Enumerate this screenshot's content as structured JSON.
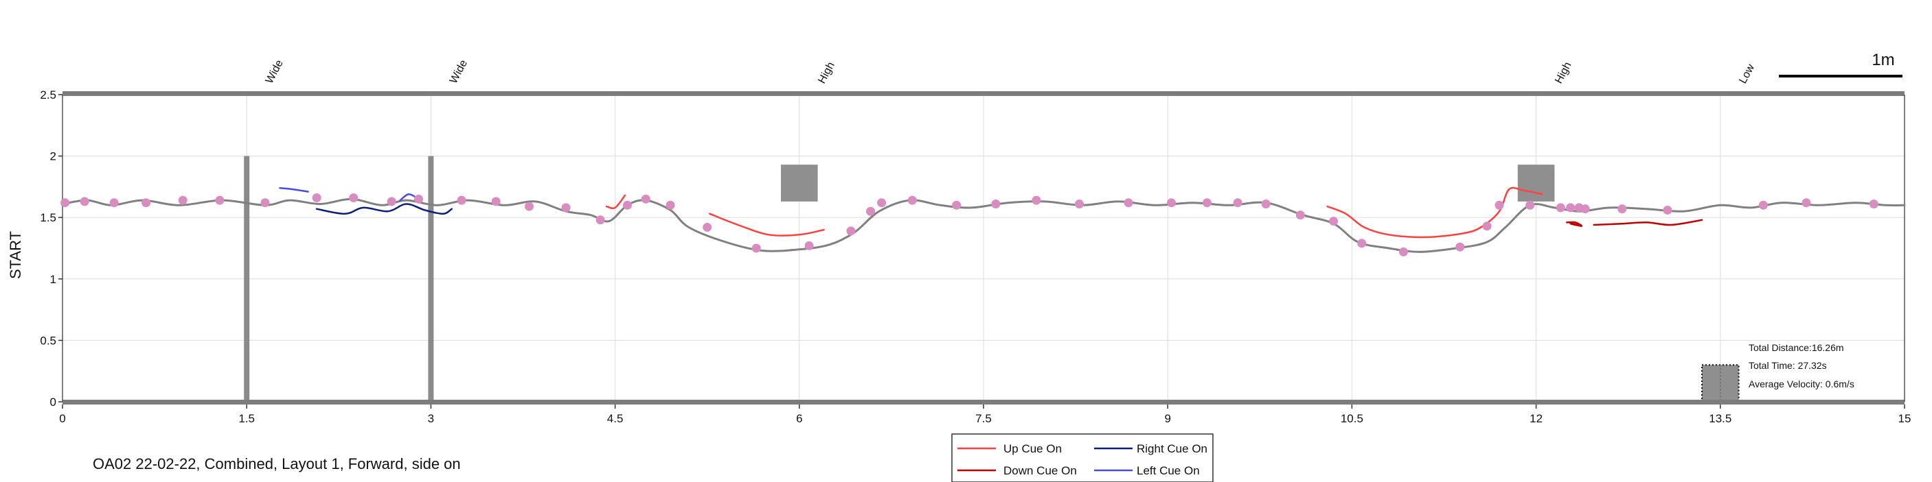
{
  "chart_data": {
    "type": "line",
    "title": "",
    "xlabel": "",
    "ylabel": "START",
    "xlim": [
      0,
      15
    ],
    "ylim": [
      0,
      2.5
    ],
    "grid": true,
    "x_ticks": [
      {
        "value": 0,
        "label": "0"
      },
      {
        "value": 1.5,
        "label": "1.5"
      },
      {
        "value": 3,
        "label": "3"
      },
      {
        "value": 4.5,
        "label": "4.5"
      },
      {
        "value": 6,
        "label": "6"
      },
      {
        "value": 7.5,
        "label": "7.5"
      },
      {
        "value": 9,
        "label": "9"
      },
      {
        "value": 10.5,
        "label": "10.5"
      },
      {
        "value": 12,
        "label": "12"
      },
      {
        "value": 13.5,
        "label": "13.5"
      },
      {
        "value": 15,
        "label": "15"
      }
    ],
    "y_ticks": [
      {
        "value": 0,
        "label": "0"
      },
      {
        "value": 0.5,
        "label": "0.5"
      },
      {
        "value": 1,
        "label": "1"
      },
      {
        "value": 1.5,
        "label": "1.5"
      },
      {
        "value": 2,
        "label": "2"
      },
      {
        "value": 2.5,
        "label": "2.5"
      }
    ],
    "obstacle_labels": [
      {
        "x": 1.5,
        "label": "Wide"
      },
      {
        "x": 3,
        "label": "Wide"
      },
      {
        "x": 6,
        "label": "High"
      },
      {
        "x": 12,
        "label": "High"
      },
      {
        "x": 13.5,
        "label": "Low"
      }
    ],
    "obstacles": [
      {
        "kind": "bar",
        "x": 1.5,
        "y0": 0,
        "y1": 2
      },
      {
        "kind": "bar",
        "x": 3,
        "y0": 0,
        "y1": 2
      },
      {
        "kind": "box",
        "x0": 5.85,
        "x1": 6.15,
        "y0": 1.63,
        "y1": 1.93
      },
      {
        "kind": "box",
        "x0": 11.85,
        "x1": 12.15,
        "y0": 1.63,
        "y1": 1.93
      },
      {
        "kind": "dotted-box",
        "x0": 13.35,
        "x1": 13.65,
        "y0": 0,
        "y1": 0.3
      }
    ],
    "series": [
      {
        "name": "",
        "color": "#808080",
        "x": [
          0,
          0.2,
          0.4,
          0.65,
          0.95,
          1.3,
          1.65,
          1.85,
          2.1,
          2.35,
          2.6,
          2.8,
          3.05,
          3.3,
          3.6,
          3.85,
          4.1,
          4.3,
          4.45,
          4.6,
          4.75,
          4.95,
          5.1,
          5.4,
          5.7,
          6.0,
          6.25,
          6.45,
          6.65,
          6.9,
          7.15,
          7.4,
          7.7,
          8.0,
          8.3,
          8.6,
          8.9,
          9.2,
          9.5,
          9.8,
          10.1,
          10.35,
          10.55,
          10.8,
          11.05,
          11.35,
          11.6,
          11.75,
          11.95,
          12.15,
          12.35,
          12.6,
          12.9,
          13.2,
          13.5,
          13.75,
          14.0,
          14.3,
          14.6,
          14.85,
          15.0
        ],
        "y": [
          1.61,
          1.64,
          1.6,
          1.64,
          1.6,
          1.64,
          1.6,
          1.64,
          1.61,
          1.65,
          1.6,
          1.64,
          1.6,
          1.64,
          1.6,
          1.63,
          1.55,
          1.52,
          1.47,
          1.6,
          1.64,
          1.56,
          1.42,
          1.3,
          1.23,
          1.24,
          1.28,
          1.38,
          1.55,
          1.64,
          1.6,
          1.58,
          1.62,
          1.63,
          1.6,
          1.63,
          1.6,
          1.62,
          1.6,
          1.62,
          1.52,
          1.45,
          1.3,
          1.25,
          1.22,
          1.25,
          1.3,
          1.42,
          1.6,
          1.58,
          1.55,
          1.58,
          1.57,
          1.55,
          1.6,
          1.58,
          1.62,
          1.6,
          1.62,
          1.6,
          1.6
        ]
      },
      {
        "name": "Up Cue On",
        "color": "#ff4040",
        "segments": [
          {
            "x": [
              4.43,
              4.5,
              4.58
            ],
            "y": [
              1.59,
              1.58,
              1.68
            ]
          },
          {
            "x": [
              5.27,
              5.5,
              5.75,
              6.0,
              6.2
            ],
            "y": [
              1.53,
              1.44,
              1.36,
              1.36,
              1.4
            ]
          },
          {
            "x": [
              10.3,
              10.45,
              10.6,
              10.8,
              11.1,
              11.4,
              11.55,
              11.7,
              11.78,
              11.9,
              12.05
            ],
            "y": [
              1.59,
              1.53,
              1.42,
              1.36,
              1.34,
              1.37,
              1.42,
              1.55,
              1.73,
              1.72,
              1.69
            ]
          }
        ]
      },
      {
        "name": "Down Cue On",
        "color": "#c00000",
        "segments": [
          {
            "x": [
              12.25,
              12.32,
              12.37,
              12.28,
              12.35
            ],
            "y": [
              1.46,
              1.46,
              1.43,
              1.45,
              1.44
            ]
          },
          {
            "x": [
              12.47,
              12.7,
              12.9,
              13.1,
              13.35
            ],
            "y": [
              1.44,
              1.45,
              1.46,
              1.44,
              1.48
            ]
          }
        ]
      },
      {
        "name": "Right Cue On",
        "color": "#0a1f7a",
        "segments": [
          {
            "x": [
              2.07,
              2.3,
              2.45,
              2.65,
              2.8,
              2.95,
              3.1,
              3.17
            ],
            "y": [
              1.57,
              1.53,
              1.58,
              1.55,
              1.61,
              1.56,
              1.53,
              1.57
            ]
          }
        ]
      },
      {
        "name": "Left Cue On",
        "color": "#4a4ae0",
        "segments": [
          {
            "x": [
              1.77,
              1.87,
              2.0
            ],
            "y": [
              1.74,
              1.73,
              1.71
            ]
          },
          {
            "x": [
              2.75,
              2.82,
              2.9
            ],
            "y": [
              1.64,
              1.69,
              1.65
            ]
          }
        ]
      }
    ],
    "markers": {
      "color": "#d98cc0",
      "x": [
        0.02,
        0.18,
        0.42,
        0.68,
        0.98,
        1.28,
        1.65,
        2.07,
        2.37,
        2.68,
        2.9,
        3.25,
        3.53,
        3.8,
        4.1,
        4.38,
        4.6,
        4.75,
        4.95,
        5.25,
        5.65,
        6.08,
        6.42,
        6.58,
        6.67,
        6.92,
        7.28,
        7.6,
        7.93,
        8.28,
        8.68,
        9.03,
        9.32,
        9.57,
        9.8,
        10.08,
        10.35,
        10.58,
        10.92,
        11.38,
        11.6,
        11.7,
        11.95,
        12.2,
        12.28,
        12.35,
        12.4,
        12.7,
        13.07,
        13.85,
        14.2,
        14.75
      ],
      "y": [
        1.62,
        1.63,
        1.62,
        1.62,
        1.64,
        1.64,
        1.62,
        1.66,
        1.66,
        1.63,
        1.65,
        1.64,
        1.63,
        1.59,
        1.58,
        1.48,
        1.6,
        1.65,
        1.6,
        1.42,
        1.25,
        1.27,
        1.39,
        1.55,
        1.62,
        1.64,
        1.6,
        1.61,
        1.64,
        1.61,
        1.62,
        1.62,
        1.62,
        1.62,
        1.61,
        1.52,
        1.47,
        1.29,
        1.22,
        1.26,
        1.43,
        1.6,
        1.6,
        1.58,
        1.58,
        1.58,
        1.57,
        1.57,
        1.56,
        1.6,
        1.62,
        1.61
      ]
    },
    "legend": {
      "placement": "bottom-center",
      "entries": [
        {
          "label": "Up Cue On",
          "color": "#ff4040"
        },
        {
          "label": "Right Cue On",
          "color": "#0a1f7a"
        },
        {
          "label": "Down Cue On",
          "color": "#c00000"
        },
        {
          "label": "Left Cue On",
          "color": "#4a4ae0"
        }
      ]
    },
    "stats": {
      "distance": "Total Distance:16.26m",
      "time": "Total Time: 27.32s",
      "velocity": "Average Velocity: 0.6m/s"
    },
    "scale_bar": {
      "label": "1m",
      "length_m": 1
    },
    "caption": "OA02 22-02-22, Combined, Layout 1, Forward, side on"
  }
}
